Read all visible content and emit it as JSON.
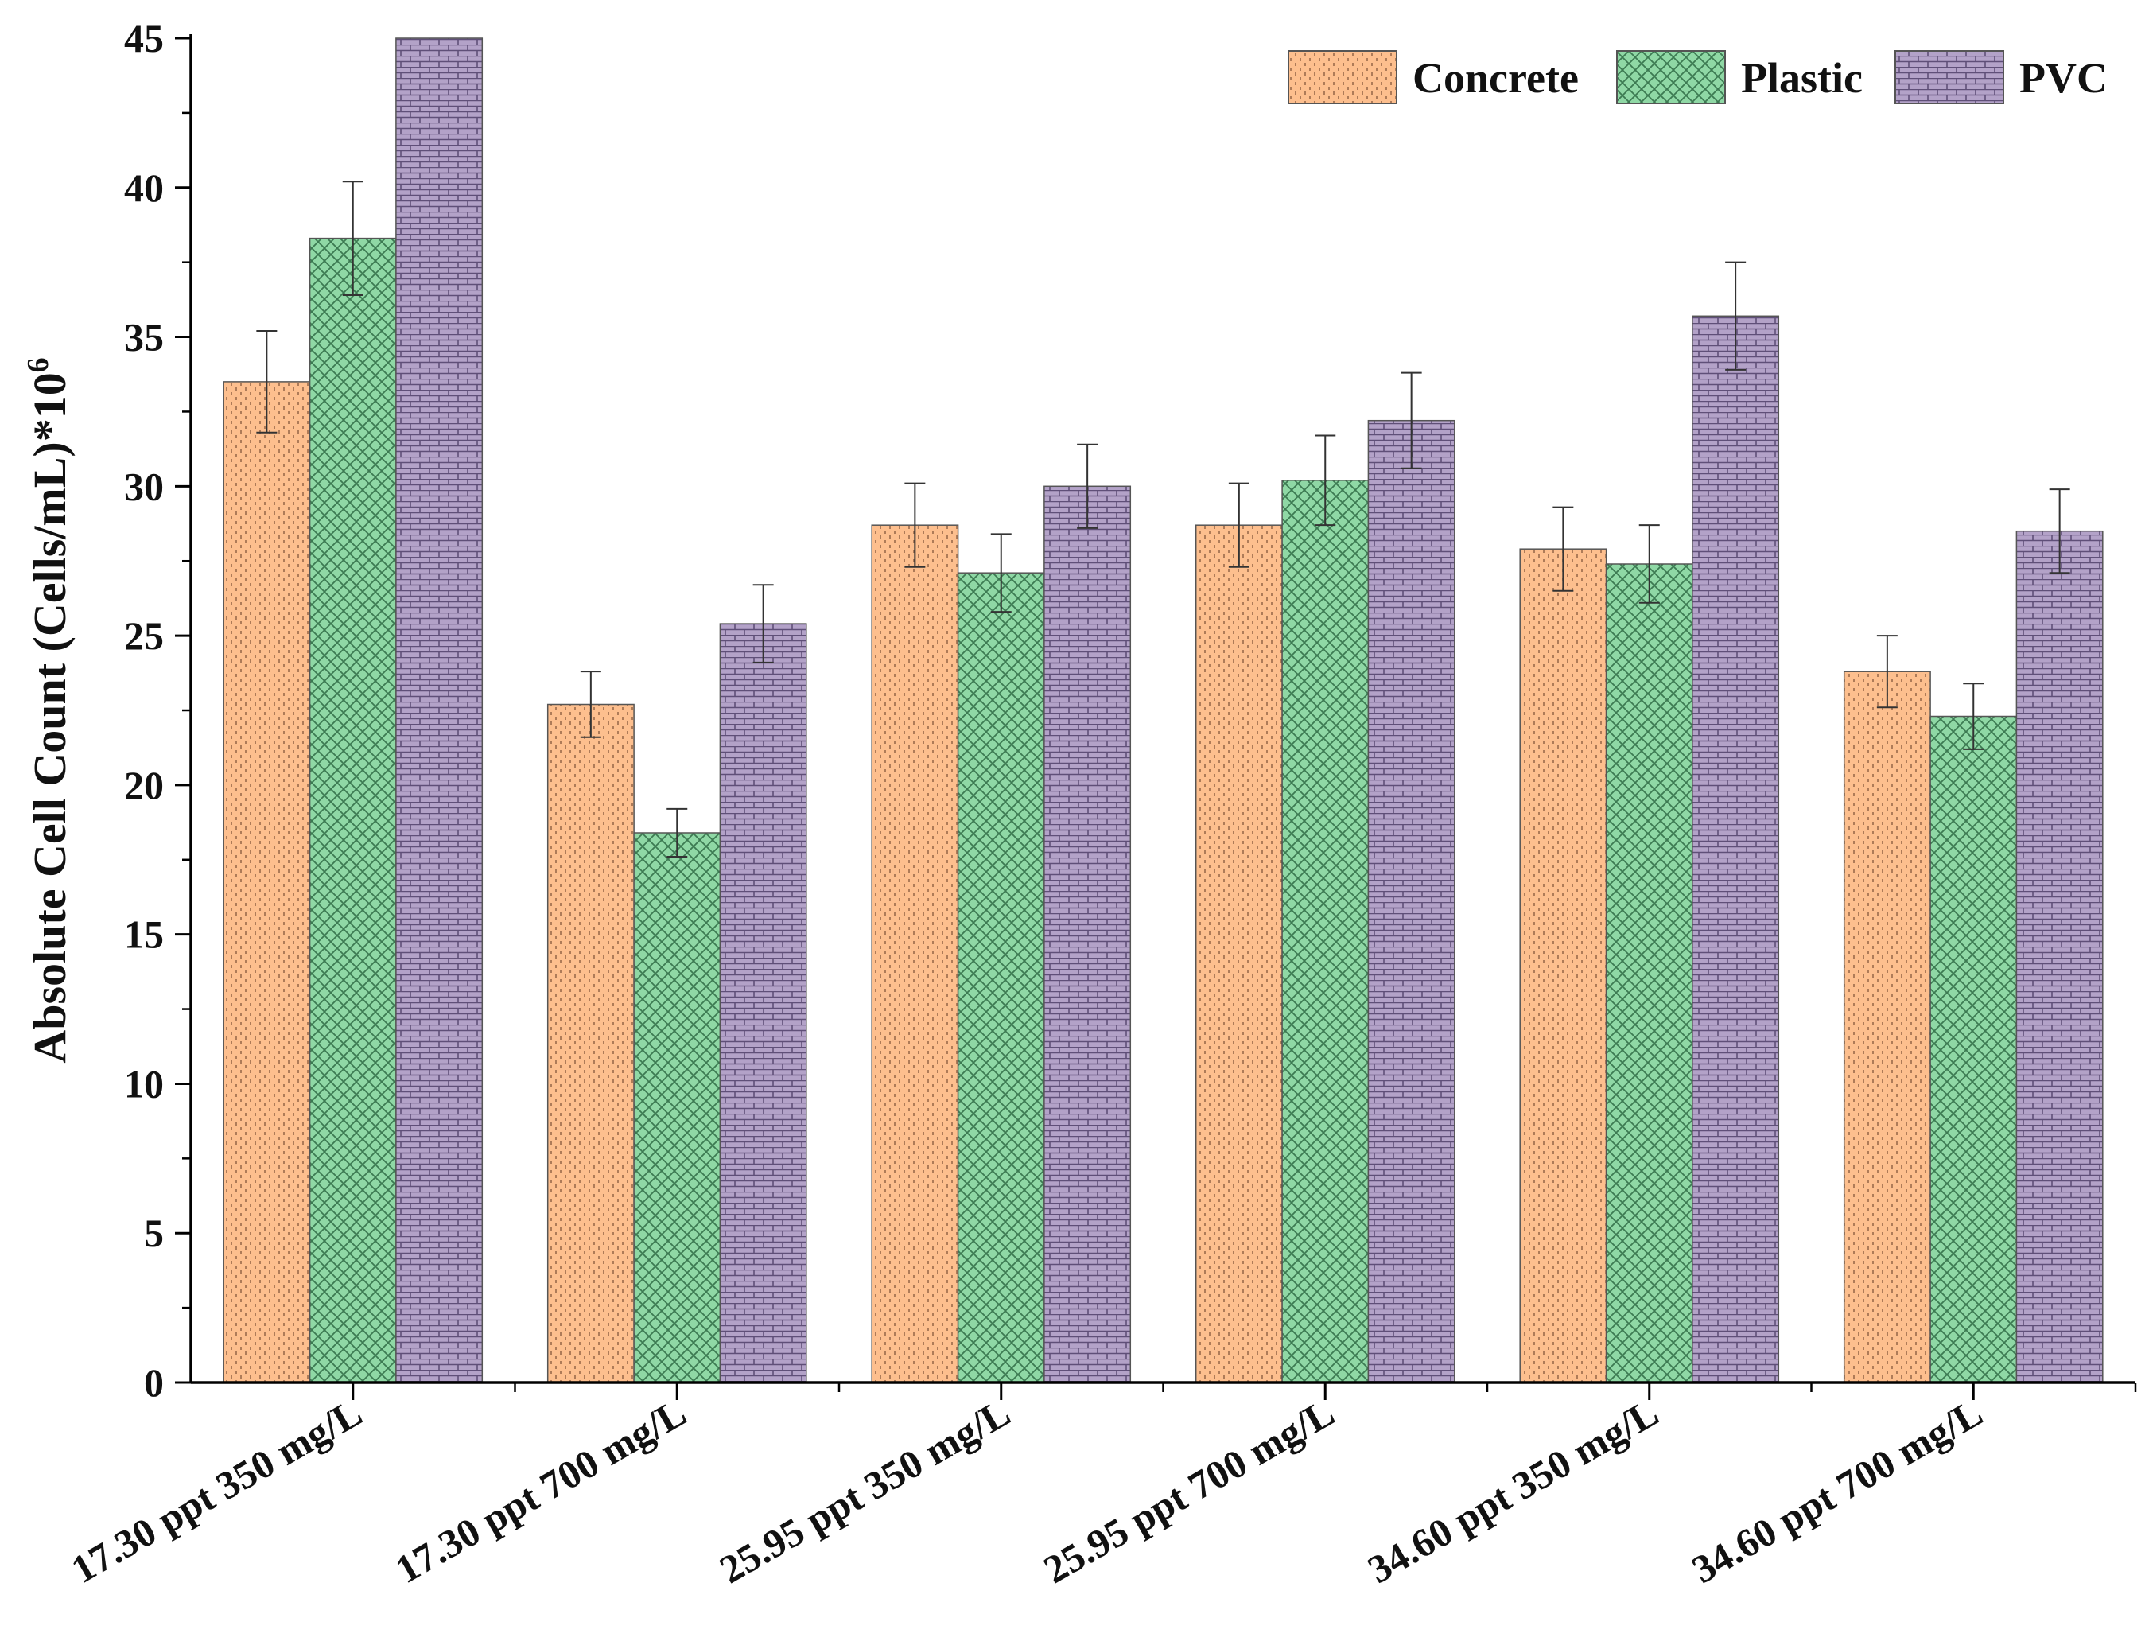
{
  "chart_data": {
    "type": "bar",
    "ylabel": "Absolute Cell Count (Cells/mL)*10",
    "ylabel_superscript": "6",
    "xlabel": "",
    "ylim": [
      0,
      45
    ],
    "yticks": [
      0,
      5,
      10,
      15,
      20,
      25,
      30,
      35,
      40,
      45
    ],
    "grid": false,
    "legend_position": "top-right",
    "categories": [
      "17.30 ppt 350 mg/L",
      "17.30 ppt 700 mg/L",
      "25.95 ppt 350 mg/L",
      "25.95 ppt 700 mg/L",
      "34.60 ppt 350 mg/L",
      "34.60 ppt 700 mg/L"
    ],
    "series": [
      {
        "name": "Concrete",
        "color": "#fdbf8e",
        "pattern": "dots",
        "values": [
          33.5,
          22.7,
          28.7,
          28.7,
          27.9,
          23.8
        ],
        "errors": [
          1.7,
          1.1,
          1.4,
          1.4,
          1.4,
          1.2
        ]
      },
      {
        "name": "Plastic",
        "color": "#8fd8a5",
        "pattern": "crosshatch",
        "values": [
          38.3,
          18.4,
          27.1,
          30.2,
          27.4,
          22.3
        ],
        "errors": [
          1.9,
          0.8,
          1.3,
          1.5,
          1.3,
          1.1
        ]
      },
      {
        "name": "PVC",
        "color": "#b3a2c8",
        "pattern": "bricks",
        "values": [
          45.0,
          25.4,
          30.0,
          32.2,
          35.7,
          28.5
        ],
        "errors": [
          0,
          1.3,
          1.4,
          1.6,
          1.8,
          1.4
        ]
      }
    ]
  }
}
